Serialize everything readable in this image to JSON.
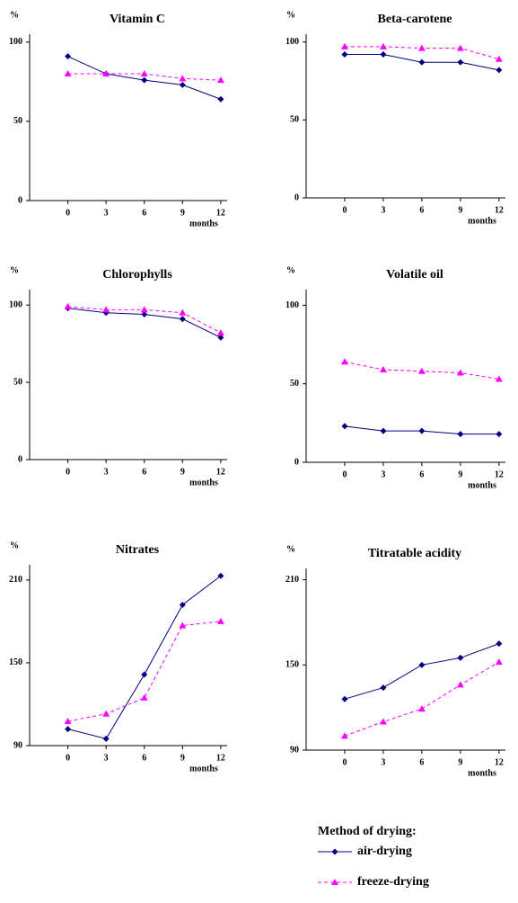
{
  "chart_data": [
    {
      "type": "line",
      "title": "Vitamin C",
      "ylabel": "%",
      "xlabel": "months",
      "x": [
        0,
        3,
        6,
        9,
        12
      ],
      "xlim": [
        -3,
        12.5
      ],
      "xticks": [
        0,
        3,
        6,
        9,
        12
      ],
      "ylim": [
        0,
        105
      ],
      "yticks": [
        0,
        50,
        100
      ],
      "series": [
        {
          "name": "air-drying",
          "color": "#000080",
          "marker": "diamond",
          "linestyle": "solid",
          "values": [
            91,
            80,
            76,
            73,
            64
          ]
        },
        {
          "name": "freeze-drying",
          "color": "#ff00ff",
          "marker": "triangle",
          "linestyle": "dashed",
          "values": [
            80,
            80,
            80,
            77,
            76
          ]
        }
      ]
    },
    {
      "type": "line",
      "title": "Beta-carotene",
      "ylabel": "%",
      "xlabel": "months",
      "x": [
        0,
        3,
        6,
        9,
        12
      ],
      "xlim": [
        -3,
        12.5
      ],
      "xticks": [
        0,
        3,
        6,
        9,
        12
      ],
      "ylim": [
        0,
        105
      ],
      "yticks": [
        0,
        50,
        100
      ],
      "series": [
        {
          "name": "air-drying",
          "color": "#000080",
          "marker": "diamond",
          "linestyle": "solid",
          "values": [
            92,
            92,
            87,
            87,
            82
          ]
        },
        {
          "name": "freeze-drying",
          "color": "#ff00ff",
          "marker": "triangle",
          "linestyle": "dashed",
          "values": [
            97,
            97,
            96,
            96,
            89
          ]
        }
      ]
    },
    {
      "type": "line",
      "title": "Chlorophylls",
      "ylabel": "%",
      "xlabel": "months",
      "x": [
        0,
        3,
        6,
        9,
        12
      ],
      "xlim": [
        -3,
        12.5
      ],
      "xticks": [
        0,
        3,
        6,
        9,
        12
      ],
      "ylim": [
        0,
        110
      ],
      "yticks": [
        0,
        50,
        100
      ],
      "series": [
        {
          "name": "air-drying",
          "color": "#000080",
          "marker": "diamond",
          "linestyle": "solid",
          "values": [
            98,
            95,
            94,
            91,
            79
          ]
        },
        {
          "name": "freeze-drying",
          "color": "#ff00ff",
          "marker": "triangle",
          "linestyle": "dashed",
          "values": [
            99,
            97,
            97,
            95,
            82
          ]
        }
      ]
    },
    {
      "type": "line",
      "title": "Volatile oil",
      "ylabel": "%",
      "xlabel": "months",
      "x": [
        0,
        3,
        6,
        9,
        12
      ],
      "xlim": [
        -3,
        12.5
      ],
      "xticks": [
        0,
        3,
        6,
        9,
        12
      ],
      "ylim": [
        0,
        110
      ],
      "yticks": [
        0,
        50,
        100
      ],
      "series": [
        {
          "name": "air-drying",
          "color": "#000080",
          "marker": "diamond",
          "linestyle": "solid",
          "values": [
            23,
            20,
            20,
            18,
            18
          ]
        },
        {
          "name": "freeze-drying",
          "color": "#ff00ff",
          "marker": "triangle",
          "linestyle": "dashed",
          "values": [
            64,
            59,
            58,
            57,
            53
          ]
        }
      ]
    },
    {
      "type": "line",
      "title": "Nitrates",
      "ylabel": "%",
      "xlabel": "months",
      "x": [
        0,
        3,
        6,
        9,
        12
      ],
      "xlim": [
        -3,
        12.5
      ],
      "xticks": [
        0,
        3,
        6,
        9,
        12
      ],
      "ylim": [
        90,
        221
      ],
      "yticks": [
        90,
        150,
        210
      ],
      "series": [
        {
          "name": "air-drying",
          "color": "#000080",
          "marker": "diamond",
          "linestyle": "solid",
          "values": [
            102,
            95,
            141.5,
            192,
            213
          ]
        },
        {
          "name": "freeze-drying",
          "color": "#ff00ff",
          "marker": "triangle",
          "linestyle": "dashed",
          "values": [
            107.6,
            113,
            124.6,
            177,
            180
          ]
        }
      ]
    },
    {
      "type": "line",
      "title": "Titratable acidity",
      "ylabel": "%",
      "xlabel": "months",
      "x": [
        0,
        3,
        6,
        9,
        12
      ],
      "xlim": [
        -3,
        12.5
      ],
      "xticks": [
        0,
        3,
        6,
        9,
        12
      ],
      "ylim": [
        90,
        218
      ],
      "yticks": [
        90,
        150,
        210
      ],
      "series": [
        {
          "name": "air-drying",
          "color": "#000080",
          "marker": "diamond",
          "linestyle": "solid",
          "values": [
            126,
            134,
            150,
            155,
            165
          ]
        },
        {
          "name": "freeze-drying",
          "color": "#ff00ff",
          "marker": "triangle",
          "linestyle": "dashed",
          "values": [
            100,
            110,
            119,
            136,
            152
          ]
        }
      ]
    }
  ],
  "legend": {
    "title": "Method of drying:"
  }
}
